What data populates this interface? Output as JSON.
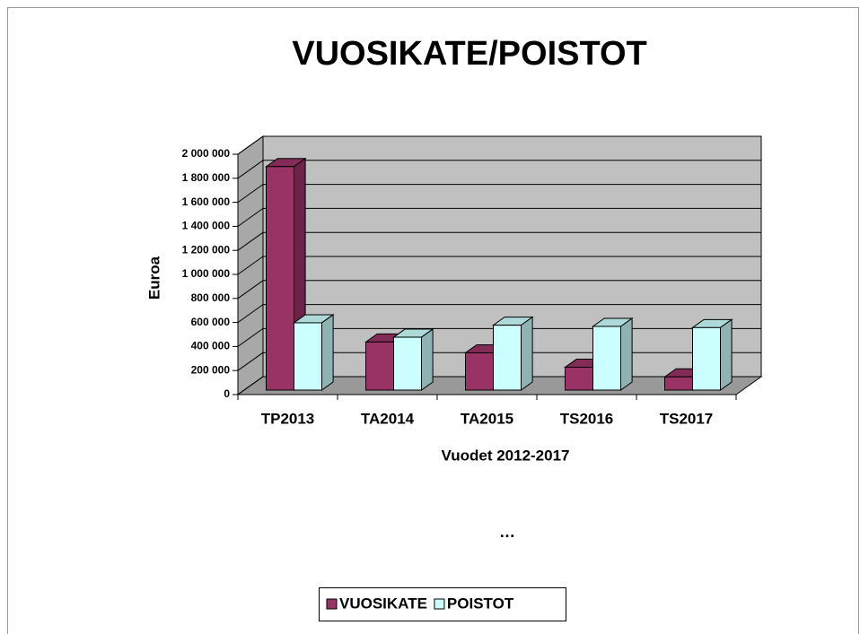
{
  "chart_data": {
    "type": "bar3d",
    "title": "VUOSIKATE/POISTOT",
    "x_label": "Vuodet 2012-2017",
    "y_label": "Euroa",
    "annotation": "…",
    "categories": [
      "TP2013",
      "TA2014",
      "TA2015",
      "TS2016",
      "TS2017"
    ],
    "series": [
      {
        "name": "VUOSIKATE",
        "color": "#993366",
        "values": [
          1860000,
          400000,
          310000,
          190000,
          110000
        ]
      },
      {
        "name": "POISTOT",
        "color": "#ccffff",
        "values": [
          560000,
          440000,
          540000,
          530000,
          520000
        ]
      }
    ],
    "ylim": [
      0,
      2000000
    ],
    "yticks": [
      0,
      {
        "value": 200000,
        "label": "200 000"
      },
      {
        "value": 400000,
        "label": "400 000"
      },
      {
        "value": 600000,
        "label": "600 000"
      },
      {
        "value": 800000,
        "label": "800 000"
      },
      {
        "value": 1000000,
        "label": "1 000 000"
      },
      {
        "value": 1200000,
        "label": "1 200 000"
      },
      {
        "value": 1400000,
        "label": "1 400 000"
      },
      {
        "value": 1600000,
        "label": "1 600 000"
      },
      {
        "value": 1800000,
        "label": "1 800 000"
      },
      {
        "value": 2000000,
        "label": "2 000 000"
      }
    ],
    "grid": true,
    "legend": "bottom"
  }
}
